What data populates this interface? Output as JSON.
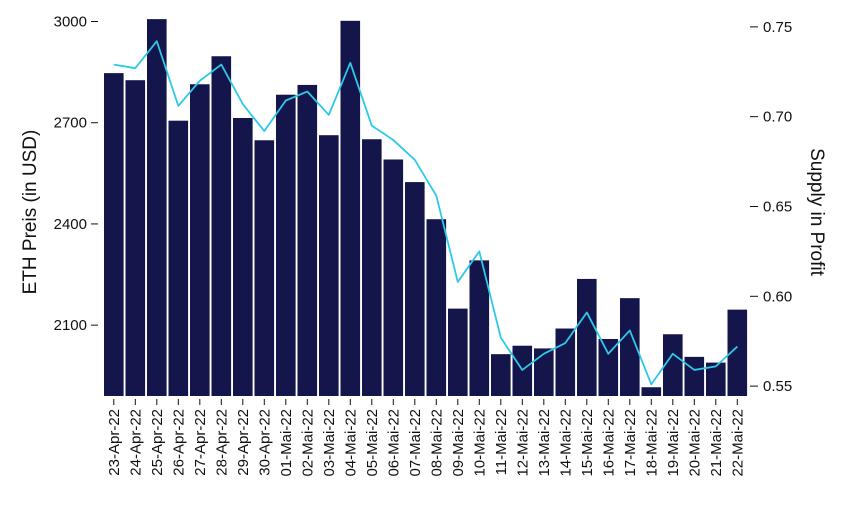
{
  "chart_data": {
    "type": "bar+line",
    "categories": [
      "23-Apr-22",
      "24-Apr-22",
      "25-Apr-22",
      "26-Apr-22",
      "27-Apr-22",
      "28-Apr-22",
      "29-Apr-22",
      "30-Apr-22",
      "01-Mai-22",
      "02-Mai-22",
      "03-Mai-22",
      "04-Mai-22",
      "05-Mai-22",
      "06-Mai-22",
      "07-Mai-22",
      "08-Mai-22",
      "09-Mai-22",
      "10-Mai-22",
      "11-Mai-22",
      "12-Mai-22",
      "13-Mai-22",
      "14-Mai-22",
      "15-Mai-22",
      "16-Mai-22",
      "17-Mai-22",
      "18-Mai-22",
      "19-Mai-22",
      "20-Mai-22",
      "21-Mai-22",
      "22-Mai-22"
    ],
    "series": [
      {
        "axis": "left",
        "kind": "bar",
        "color": "#14154a",
        "values": [
          2847,
          2826,
          3007,
          2706,
          2814,
          2897,
          2714,
          2648,
          2783,
          2812,
          2663,
          3002,
          2651,
          2591,
          2524,
          2414,
          2149,
          2292,
          2014,
          2039,
          2031,
          2090,
          2237,
          2059,
          2180,
          1916,
          2073,
          2006,
          1989,
          2146
        ]
      },
      {
        "axis": "right",
        "kind": "line",
        "color": "#2ec8e8",
        "values": [
          0.729,
          0.727,
          0.742,
          0.706,
          0.72,
          0.729,
          0.707,
          0.692,
          0.709,
          0.714,
          0.701,
          0.73,
          0.695,
          0.687,
          0.676,
          0.656,
          0.608,
          0.625,
          0.577,
          0.559,
          0.568,
          0.574,
          0.591,
          0.568,
          0.581,
          0.551,
          0.568,
          0.559,
          0.561,
          0.572
        ]
      }
    ],
    "y_left": {
      "label": "ETH Preis (in USD)",
      "min": 1890,
      "max": 3040,
      "ticks": [
        2100,
        2400,
        2700,
        3000
      ]
    },
    "y_right": {
      "label": "Supply in Profit",
      "min": 0.5445,
      "max": 0.7605,
      "ticks": [
        "0.55",
        "0.60",
        "0.65",
        "0.70",
        "0.75"
      ]
    },
    "legend": "none",
    "grid": false
  }
}
